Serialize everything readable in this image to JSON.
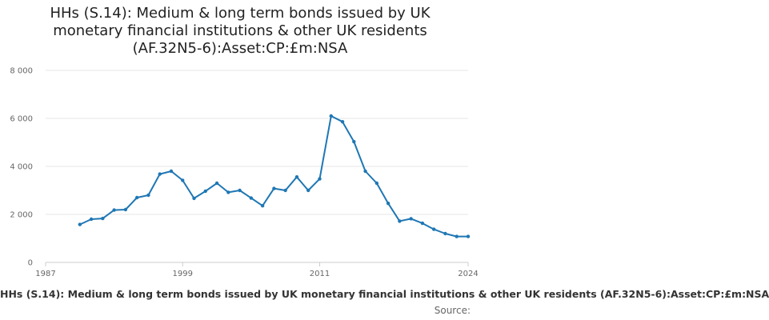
{
  "header": {
    "title": "HHs (S.14): Medium & long term bonds issued by UK\nmonetary financial institutions & other UK residents\n(AF.32N5-6):Asset:CP:£m:NSA"
  },
  "footer": {
    "series_label": "HHs (S.14): Medium & long term bonds issued by UK monetary financial institutions & other UK residents (AF.32N5-6):Asset:CP:£m:NSA",
    "source_label": "Source:"
  },
  "colors": {
    "series": "#1f77b4",
    "grid": "#e6e6e6",
    "axis": "#cccccc"
  },
  "chart_data": {
    "type": "line",
    "title": "HHs (S.14): Medium & long term bonds issued by UK monetary financial institutions & other UK residents (AF.32N5-6):Asset:CP:£m:NSA",
    "xlabel": "",
    "ylabel": "",
    "xlim": [
      1987,
      2024
    ],
    "ylim": [
      0,
      8000
    ],
    "x_ticks": [
      1987,
      1999,
      2011,
      2024
    ],
    "x_tick_labels": [
      "1987",
      "1999",
      "2011",
      "2024"
    ],
    "y_ticks": [
      0,
      2000,
      4000,
      6000,
      8000
    ],
    "y_tick_labels": [
      "0",
      "2 000",
      "4 000",
      "6 000",
      "8 000"
    ],
    "grid": "horizontal",
    "series": [
      {
        "x": [
          1990,
          1991,
          1992,
          1993,
          1994,
          1995,
          1996,
          1997,
          1998,
          1999,
          2000,
          2001,
          2002,
          2003,
          2004,
          2005,
          2006,
          2007,
          2008,
          2009,
          2010,
          2011,
          2012,
          2013,
          2014,
          2015,
          2016,
          2017,
          2018,
          2019,
          2020,
          2021,
          2022,
          2023,
          2024
        ],
        "values": [
          1580,
          1800,
          1830,
          2180,
          2200,
          2700,
          2800,
          3680,
          3800,
          3420,
          2670,
          2970,
          3300,
          2920,
          3000,
          2680,
          2360,
          3080,
          3000,
          3560,
          3000,
          3480,
          6100,
          5860,
          5030,
          3800,
          3300,
          2460,
          1720,
          1820,
          1630,
          1380,
          1200,
          1080,
          1080
        ]
      }
    ]
  }
}
